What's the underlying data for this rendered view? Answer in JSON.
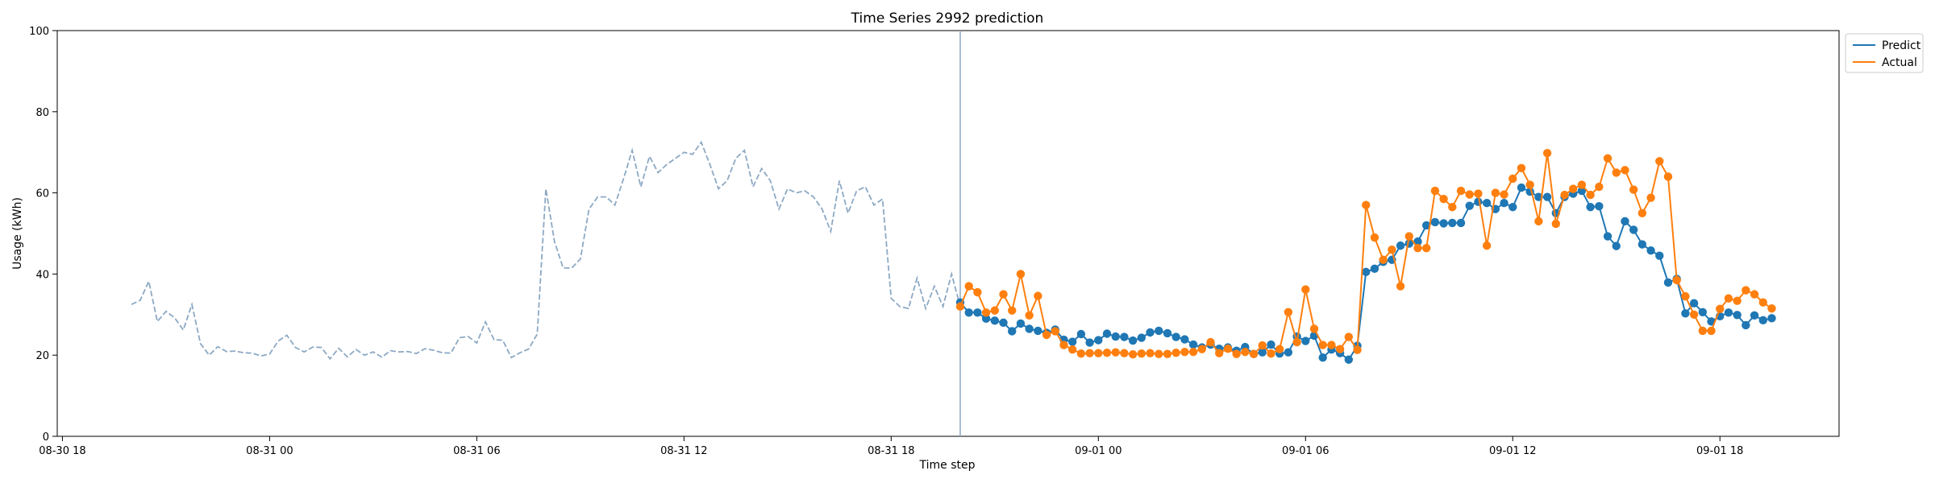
{
  "chart_data": {
    "type": "line",
    "title": "Time Series 2992 prediction",
    "xlabel": "Time step",
    "ylabel": "Usage (kWh)",
    "ylim": [
      0,
      100
    ],
    "y_ticks": [
      0,
      20,
      40,
      60,
      80,
      100
    ],
    "x_ticks": [
      {
        "label": "08-30 18",
        "hour": 0
      },
      {
        "label": "08-31 00",
        "hour": 6
      },
      {
        "label": "08-31 06",
        "hour": 12
      },
      {
        "label": "08-31 12",
        "hour": 18
      },
      {
        "label": "08-31 18",
        "hour": 24
      },
      {
        "label": "09-01 00",
        "hour": 30
      },
      {
        "label": "09-01 06",
        "hour": 36
      },
      {
        "label": "09-01 12",
        "hour": 42
      },
      {
        "label": "09-01 18",
        "hour": 48
      }
    ],
    "xlim_hours": [
      -0.15,
      51.45
    ],
    "step_hours": 0.25,
    "history_start_hour": 2,
    "forecast_start_hour": 26,
    "history": [
      32.5,
      33.5,
      38.2,
      28.3,
      30.8,
      29.2,
      26.2,
      32.5,
      22.8,
      20.0,
      22.1,
      20.9,
      21.0,
      20.6,
      20.5,
      19.8,
      20.3,
      23.5,
      24.9,
      21.9,
      20.8,
      22.0,
      21.9,
      19.1,
      21.7,
      19.6,
      21.4,
      20.0,
      20.8,
      19.5,
      21.1,
      20.8,
      20.9,
      20.4,
      21.6,
      21.2,
      20.6,
      20.5,
      24.3,
      24.6,
      23.0,
      28.2,
      23.8,
      23.7,
      19.4,
      20.6,
      21.5,
      25.2,
      61.0,
      48.0,
      41.5,
      41.5,
      43.7,
      56.0,
      59.0,
      59.0,
      57.0,
      63.5,
      70.5,
      61.5,
      69.0,
      65.0,
      67.0,
      68.5,
      70.0,
      69.5,
      72.5,
      67.0,
      61.0,
      63.0,
      68.5,
      70.5,
      61.5,
      66.0,
      63.0,
      56.0,
      61.0,
      60.0,
      60.5,
      59.0,
      56.0,
      50.5,
      63.0,
      55.0,
      60.5,
      61.5,
      57.0,
      58.5,
      34.0,
      32.0,
      31.5,
      39.0,
      31.5,
      37.0,
      32.0,
      40.0,
      32.0
    ],
    "series": [
      {
        "name": "Predict",
        "color": "#1f77b4",
        "values": [
          33.0,
          30.5,
          30.5,
          29.0,
          28.5,
          28.0,
          25.9,
          27.8,
          26.5,
          26.0,
          25.5,
          26.3,
          23.8,
          23.3,
          25.2,
          23.1,
          23.7,
          25.3,
          24.6,
          24.5,
          23.6,
          24.3,
          25.6,
          26.0,
          25.4,
          24.5,
          23.9,
          22.6,
          21.9,
          22.6,
          21.6,
          21.9,
          21.1,
          22.0,
          20.3,
          20.7,
          22.6,
          20.4,
          20.7,
          24.6,
          23.5,
          24.8,
          19.4,
          21.4,
          20.5,
          18.9,
          22.3,
          40.5,
          41.3,
          43.0,
          43.5,
          47.0,
          47.5,
          48.0,
          52.0,
          52.8,
          52.5,
          52.6,
          52.6,
          56.8,
          57.8,
          57.5,
          56.0,
          57.5,
          56.5,
          61.3,
          60.3,
          59.0,
          59.0,
          55.0,
          59.0,
          59.8,
          60.5,
          56.5,
          56.7,
          49.3,
          46.9,
          53.0,
          50.9,
          47.3,
          45.8,
          44.5,
          37.9,
          38.8,
          30.3,
          32.8,
          30.6,
          28.3,
          29.6,
          30.5,
          29.9,
          27.4,
          29.8,
          28.6,
          29.1
        ]
      },
      {
        "name": "Actual",
        "color": "#ff7f0e",
        "values": [
          32.0,
          37.0,
          35.5,
          30.5,
          31.0,
          35.0,
          31.0,
          40.0,
          29.8,
          34.6,
          25.0,
          25.9,
          22.5,
          21.4,
          20.4,
          20.5,
          20.5,
          20.6,
          20.7,
          20.5,
          20.2,
          20.4,
          20.5,
          20.3,
          20.3,
          20.6,
          20.8,
          20.8,
          21.5,
          23.2,
          20.5,
          21.6,
          20.3,
          20.8,
          20.3,
          22.4,
          20.4,
          21.5,
          30.6,
          23.2,
          36.2,
          26.5,
          22.5,
          22.5,
          21.5,
          24.5,
          21.3,
          57.0,
          49.0,
          43.5,
          46.0,
          37.0,
          49.3,
          46.4,
          46.4,
          60.5,
          58.5,
          56.5,
          60.5,
          59.6,
          59.8,
          47.0,
          60.0,
          59.6,
          63.5,
          66.1,
          62.0,
          53.0,
          69.8,
          52.4,
          59.5,
          61.0,
          62.0,
          59.5,
          61.5,
          68.5,
          65.0,
          65.6,
          60.8,
          55.0,
          58.8,
          67.8,
          64.0,
          38.5,
          34.5,
          30.0,
          26.0,
          26.0,
          31.4,
          34.0,
          33.4,
          36.0,
          35.0,
          33.0,
          31.5
        ]
      }
    ],
    "history_color": "#8da9c4",
    "forecast_line_color": "#8da9c4",
    "grid": false,
    "legend_position": "top-right (outside axes)"
  }
}
